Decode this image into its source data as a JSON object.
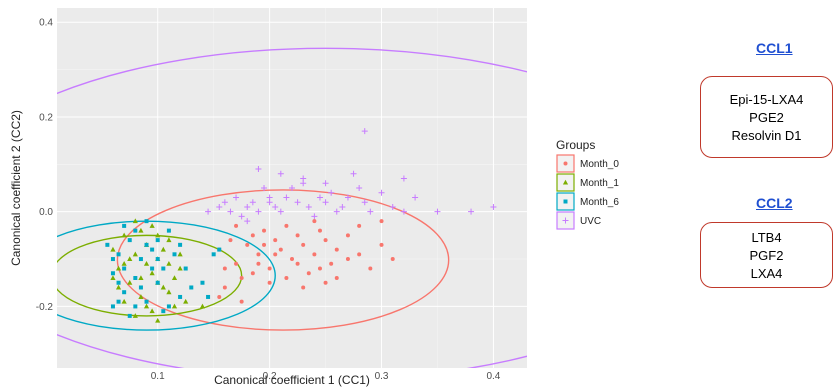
{
  "chart_data": {
    "type": "scatter",
    "xlabel": "Canonical coefficient 1 (CC1)",
    "ylabel": "Canonical coefficient 2 (CC2)",
    "xlim": [
      0.01,
      0.43
    ],
    "ylim": [
      -0.33,
      0.43
    ],
    "xticks": [
      0.1,
      0.2,
      0.3,
      0.4
    ],
    "xtick_labels": [
      "0.1",
      "0.2",
      "0.3",
      "0.4"
    ],
    "yticks": [
      -0.2,
      0.0,
      0.2,
      0.4
    ],
    "ytick_labels": [
      "-0.2",
      "0.0",
      "0.2",
      "0.4"
    ],
    "grid": true,
    "legend_title": "Groups",
    "legend_position": "right",
    "series": [
      {
        "name": "Month_0",
        "color": "#F8766D",
        "marker": "circle",
        "ellipse": {
          "cx": 0.212,
          "cy": -0.102,
          "r": 0.148
        },
        "points": [
          [
            0.155,
            -0.08
          ],
          [
            0.165,
            -0.06
          ],
          [
            0.17,
            -0.11
          ],
          [
            0.175,
            -0.14
          ],
          [
            0.18,
            -0.07
          ],
          [
            0.185,
            -0.05
          ],
          [
            0.19,
            -0.09
          ],
          [
            0.195,
            -0.04
          ],
          [
            0.2,
            -0.12
          ],
          [
            0.205,
            -0.06
          ],
          [
            0.21,
            -0.08
          ],
          [
            0.215,
            -0.03
          ],
          [
            0.22,
            -0.1
          ],
          [
            0.225,
            -0.05
          ],
          [
            0.23,
            -0.07
          ],
          [
            0.235,
            -0.13
          ],
          [
            0.24,
            -0.09
          ],
          [
            0.245,
            -0.04
          ],
          [
            0.25,
            -0.06
          ],
          [
            0.255,
            -0.11
          ],
          [
            0.26,
            -0.08
          ],
          [
            0.27,
            -0.05
          ],
          [
            0.28,
            -0.09
          ],
          [
            0.29,
            -0.12
          ],
          [
            0.3,
            -0.07
          ],
          [
            0.31,
            -0.1
          ],
          [
            0.16,
            -0.16
          ],
          [
            0.175,
            -0.19
          ],
          [
            0.185,
            -0.13
          ],
          [
            0.2,
            -0.15
          ],
          [
            0.215,
            -0.14
          ],
          [
            0.23,
            -0.16
          ],
          [
            0.245,
            -0.12
          ],
          [
            0.26,
            -0.14
          ],
          [
            0.27,
            -0.1
          ],
          [
            0.155,
            -0.18
          ],
          [
            0.19,
            -0.11
          ],
          [
            0.205,
            -0.09
          ],
          [
            0.225,
            -0.11
          ],
          [
            0.24,
            -0.02
          ],
          [
            0.17,
            -0.03
          ],
          [
            0.28,
            -0.03
          ],
          [
            0.3,
            -0.02
          ],
          [
            0.16,
            -0.12
          ],
          [
            0.195,
            -0.07
          ],
          [
            0.25,
            -0.15
          ]
        ]
      },
      {
        "name": "Month_1",
        "color": "#7CAE00",
        "marker": "triangle",
        "ellipse": {
          "cx": 0.09,
          "cy": -0.135,
          "r": 0.085
        },
        "points": [
          [
            0.06,
            -0.08
          ],
          [
            0.065,
            -0.12
          ],
          [
            0.07,
            -0.05
          ],
          [
            0.075,
            -0.15
          ],
          [
            0.08,
            -0.09
          ],
          [
            0.085,
            -0.18
          ],
          [
            0.09,
            -0.07
          ],
          [
            0.095,
            -0.13
          ],
          [
            0.1,
            -0.1
          ],
          [
            0.105,
            -0.16
          ],
          [
            0.11,
            -0.06
          ],
          [
            0.115,
            -0.2
          ],
          [
            0.12,
            -0.12
          ],
          [
            0.07,
            -0.19
          ],
          [
            0.08,
            -0.22
          ],
          [
            0.09,
            -0.2
          ],
          [
            0.1,
            -0.23
          ],
          [
            0.11,
            -0.17
          ],
          [
            0.065,
            -0.16
          ],
          [
            0.075,
            -0.1
          ],
          [
            0.085,
            -0.04
          ],
          [
            0.095,
            -0.03
          ],
          [
            0.1,
            -0.05
          ],
          [
            0.105,
            -0.08
          ],
          [
            0.115,
            -0.14
          ],
          [
            0.12,
            -0.09
          ],
          [
            0.125,
            -0.19
          ],
          [
            0.06,
            -0.14
          ],
          [
            0.08,
            -0.02
          ],
          [
            0.09,
            -0.11
          ],
          [
            0.1,
            -0.15
          ],
          [
            0.11,
            -0.11
          ],
          [
            0.095,
            -0.21
          ],
          [
            0.085,
            -0.14
          ],
          [
            0.14,
            -0.2
          ],
          [
            0.07,
            -0.11
          ]
        ]
      },
      {
        "name": "Month_6",
        "color": "#00A9C5",
        "marker": "square",
        "ellipse": {
          "cx": 0.09,
          "cy": -0.135,
          "r": 0.115
        },
        "points": [
          [
            0.055,
            -0.07
          ],
          [
            0.06,
            -0.13
          ],
          [
            0.065,
            -0.09
          ],
          [
            0.07,
            -0.17
          ],
          [
            0.075,
            -0.06
          ],
          [
            0.08,
            -0.14
          ],
          [
            0.085,
            -0.1
          ],
          [
            0.09,
            -0.19
          ],
          [
            0.095,
            -0.08
          ],
          [
            0.1,
            -0.15
          ],
          [
            0.105,
            -0.12
          ],
          [
            0.11,
            -0.2
          ],
          [
            0.115,
            -0.09
          ],
          [
            0.12,
            -0.07
          ],
          [
            0.06,
            -0.2
          ],
          [
            0.065,
            -0.19
          ],
          [
            0.07,
            -0.03
          ],
          [
            0.075,
            -0.22
          ],
          [
            0.08,
            -0.04
          ],
          [
            0.09,
            -0.02
          ],
          [
            0.1,
            -0.06
          ],
          [
            0.11,
            -0.04
          ],
          [
            0.125,
            -0.12
          ],
          [
            0.13,
            -0.16
          ],
          [
            0.14,
            -0.15
          ],
          [
            0.15,
            -0.09
          ],
          [
            0.145,
            -0.18
          ],
          [
            0.155,
            -0.08
          ],
          [
            0.085,
            -0.16
          ],
          [
            0.095,
            -0.12
          ],
          [
            0.07,
            -0.12
          ],
          [
            0.105,
            -0.21
          ],
          [
            0.065,
            -0.15
          ],
          [
            0.08,
            -0.2
          ],
          [
            0.1,
            -0.1
          ],
          [
            0.12,
            -0.18
          ],
          [
            0.09,
            -0.07
          ],
          [
            0.06,
            -0.1
          ]
        ]
      },
      {
        "name": "UVC",
        "color": "#C77CFF",
        "marker": "plus",
        "ellipse": {
          "cx": 0.25,
          "cy": -0.005,
          "r": 0.35
        },
        "points": [
          [
            0.145,
            0.0
          ],
          [
            0.155,
            0.01
          ],
          [
            0.16,
            0.02
          ],
          [
            0.165,
            0.0
          ],
          [
            0.17,
            0.03
          ],
          [
            0.175,
            -0.01
          ],
          [
            0.18,
            0.01
          ],
          [
            0.185,
            0.02
          ],
          [
            0.19,
            0.0
          ],
          [
            0.195,
            0.05
          ],
          [
            0.2,
            0.02
          ],
          [
            0.205,
            0.01
          ],
          [
            0.21,
            0.0
          ],
          [
            0.215,
            0.03
          ],
          [
            0.22,
            0.05
          ],
          [
            0.225,
            0.02
          ],
          [
            0.23,
            0.06
          ],
          [
            0.235,
            0.01
          ],
          [
            0.24,
            -0.01
          ],
          [
            0.245,
            0.03
          ],
          [
            0.25,
            0.02
          ],
          [
            0.255,
            0.04
          ],
          [
            0.26,
            0.0
          ],
          [
            0.265,
            0.01
          ],
          [
            0.27,
            0.03
          ],
          [
            0.275,
            0.08
          ],
          [
            0.28,
            0.05
          ],
          [
            0.285,
            0.02
          ],
          [
            0.29,
            0.0
          ],
          [
            0.3,
            0.04
          ],
          [
            0.31,
            0.01
          ],
          [
            0.32,
            0.07
          ],
          [
            0.33,
            0.03
          ],
          [
            0.35,
            0.0
          ],
          [
            0.38,
            0.0
          ],
          [
            0.4,
            0.01
          ],
          [
            0.285,
            0.17
          ],
          [
            0.32,
            0.0
          ],
          [
            0.19,
            0.09
          ],
          [
            0.21,
            0.08
          ],
          [
            0.23,
            0.07
          ],
          [
            0.2,
            0.03
          ],
          [
            0.18,
            -0.02
          ],
          [
            0.25,
            0.06
          ]
        ]
      }
    ]
  },
  "sidebar": {
    "ccl1_title": "CCL1",
    "ccl1_items": [
      "Epi-15-LXA4",
      "PGE2",
      "Resolvin D1"
    ],
    "ccl2_title": "CCL2",
    "ccl2_items": [
      "LTB4",
      "PGF2",
      "LXA4"
    ]
  }
}
